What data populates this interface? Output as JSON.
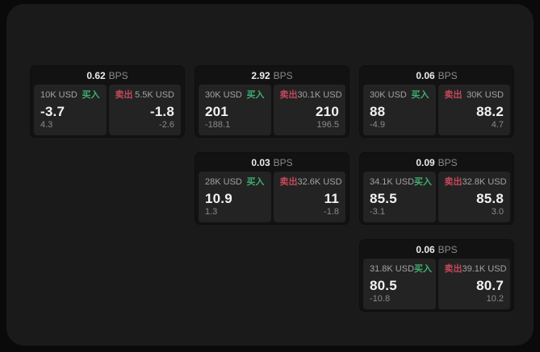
{
  "labels": {
    "bps": "BPS",
    "buy": "买入",
    "sell": "卖出"
  },
  "colors": {
    "page_outer": "#0a0a0a",
    "panel": "#1a1a1a",
    "card": "#121212",
    "pane": "#232323",
    "buy": "#3fae6f",
    "sell": "#c4485c",
    "text_primary": "#f2f2f2",
    "text_muted": "#8a8a8a"
  },
  "cards": [
    {
      "bps": "0.62",
      "buy": {
        "amount": "10K USD",
        "price": "-3.7",
        "delta": "4.3"
      },
      "sell": {
        "amount": "5.5K USD",
        "price": "-1.8",
        "delta": "-2.6"
      }
    },
    {
      "bps": "2.92",
      "buy": {
        "amount": "30K USD",
        "price": "201",
        "delta": "-188.1"
      },
      "sell": {
        "amount": "30.1K USD",
        "price": "210",
        "delta": "196.5"
      }
    },
    {
      "bps": "0.06",
      "buy": {
        "amount": "30K USD",
        "price": "88",
        "delta": "-4.9"
      },
      "sell": {
        "amount": "30K USD",
        "price": "88.2",
        "delta": "4.7"
      }
    },
    {
      "bps": "0.03",
      "buy": {
        "amount": "28K USD",
        "price": "10.9",
        "delta": "1.3"
      },
      "sell": {
        "amount": "32.6K USD",
        "price": "11",
        "delta": "-1.8"
      }
    },
    {
      "bps": "0.09",
      "buy": {
        "amount": "34.1K USD",
        "price": "85.5",
        "delta": "-3.1"
      },
      "sell": {
        "amount": "32.8K USD",
        "price": "85.8",
        "delta": "3.0"
      }
    },
    {
      "bps": "0.06",
      "buy": {
        "amount": "31.8K USD",
        "price": "80.5",
        "delta": "-10.8"
      },
      "sell": {
        "amount": "39.1K USD",
        "price": "80.7",
        "delta": "10.2"
      }
    }
  ]
}
